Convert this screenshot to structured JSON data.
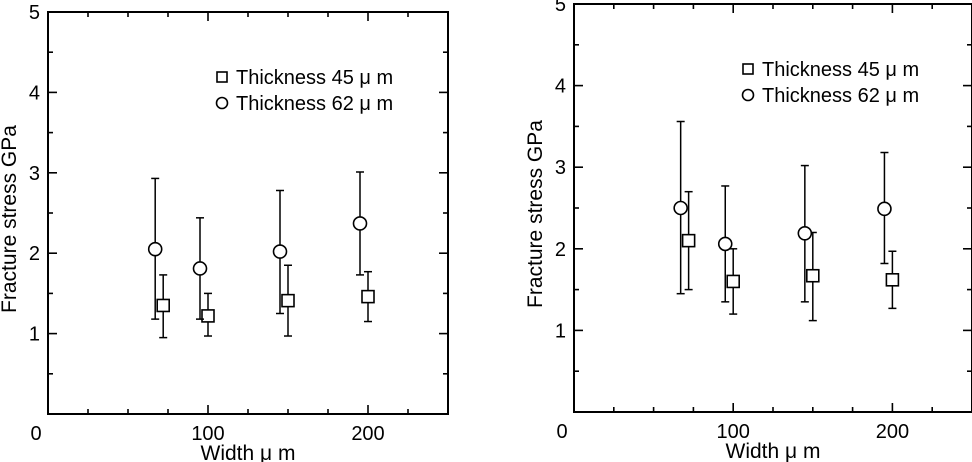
{
  "chart_data": [
    {
      "type": "scatter",
      "xlabel": "Width  μ m",
      "ylabel": "Fracture stress  GPa",
      "xlim": [
        0,
        250
      ],
      "ylim": [
        0,
        5
      ],
      "xticks_major": [
        0,
        100,
        200
      ],
      "yticks_major": [
        0,
        1,
        2,
        3,
        4,
        5
      ],
      "grid": false,
      "legend_position": "top-right",
      "series": [
        {
          "name": "Thickness 45 μ m",
          "marker": "square",
          "points": [
            {
              "x": 72,
              "y": 1.35,
              "err_low": 0.95,
              "err_high": 1.73
            },
            {
              "x": 100,
              "y": 1.22,
              "err_low": 0.97,
              "err_high": 1.5
            },
            {
              "x": 150,
              "y": 1.41,
              "err_low": 0.97,
              "err_high": 1.85
            },
            {
              "x": 200,
              "y": 1.46,
              "err_low": 1.15,
              "err_high": 1.77
            }
          ]
        },
        {
          "name": "Thickness 62 μ m",
          "marker": "circle",
          "points": [
            {
              "x": 67,
              "y": 2.05,
              "err_low": 1.18,
              "err_high": 2.93
            },
            {
              "x": 95,
              "y": 1.81,
              "err_low": 1.18,
              "err_high": 2.44
            },
            {
              "x": 145,
              "y": 2.02,
              "err_low": 1.25,
              "err_high": 2.78
            },
            {
              "x": 195,
              "y": 2.37,
              "err_low": 1.73,
              "err_high": 3.01
            }
          ]
        }
      ]
    },
    {
      "type": "scatter",
      "xlabel": "Width  μ m",
      "ylabel": "Fracture stress  GPa",
      "xlim": [
        0,
        250
      ],
      "ylim": [
        0,
        5
      ],
      "xticks_major": [
        0,
        100,
        200
      ],
      "yticks_major": [
        0,
        1,
        2,
        3,
        4,
        5
      ],
      "grid": false,
      "legend_position": "top-right",
      "series": [
        {
          "name": "Thickness 45 μ m",
          "marker": "square",
          "points": [
            {
              "x": 72,
              "y": 2.1,
              "err_low": 1.5,
              "err_high": 2.7
            },
            {
              "x": 100,
              "y": 1.6,
              "err_low": 1.2,
              "err_high": 2.0
            },
            {
              "x": 150,
              "y": 1.67,
              "err_low": 1.12,
              "err_high": 2.2
            },
            {
              "x": 200,
              "y": 1.62,
              "err_low": 1.27,
              "err_high": 1.97
            }
          ]
        },
        {
          "name": "Thickness 62 μ m",
          "marker": "circle",
          "points": [
            {
              "x": 67,
              "y": 2.5,
              "err_low": 1.45,
              "err_high": 3.56
            },
            {
              "x": 95,
              "y": 2.06,
              "err_low": 1.35,
              "err_high": 2.77
            },
            {
              "x": 145,
              "y": 2.19,
              "err_low": 1.35,
              "err_high": 3.02
            },
            {
              "x": 195,
              "y": 2.49,
              "err_low": 1.82,
              "err_high": 3.18
            }
          ]
        }
      ]
    }
  ]
}
